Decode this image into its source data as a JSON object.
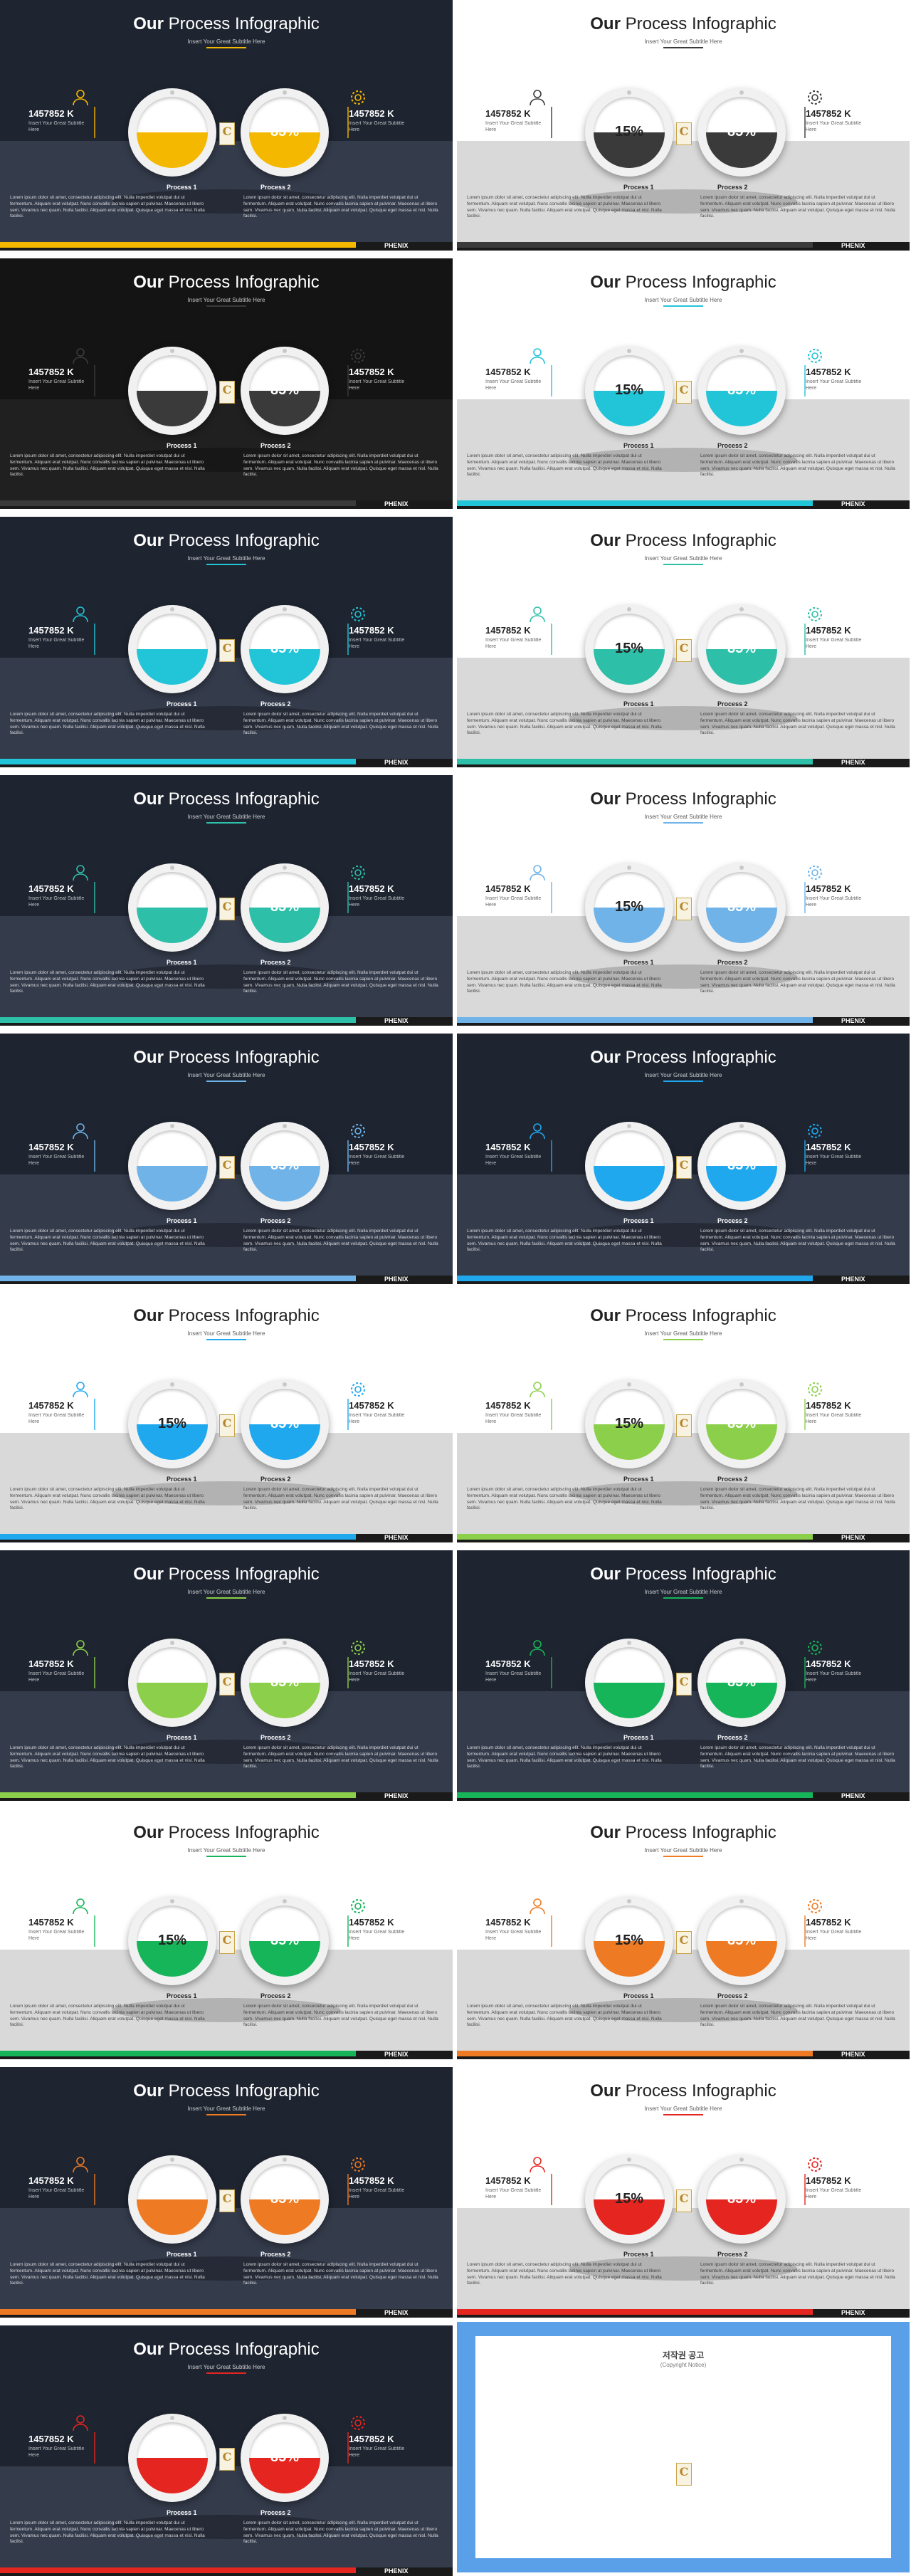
{
  "common": {
    "title_bold": "Our",
    "title_rest": " Process Infographic",
    "subtitle": "Insert Your Great Subtitle Here",
    "stat_value": "1457852 K",
    "stat_sub": "Insert Your Great Subtitle Here",
    "process1": "Process 1",
    "process2": "Process 2",
    "paragraph": "Lorem ipsum dolor sit amet, consectetur adipiscing elit. Nulla imperdiet volutpat dui ut fermentum. Aliquam erat volutpat. Nunc convallis lacinia sapien at pulvinar. Maecenas ut libero sem. Vivamus nec quam. Nulla facilisi. Aliquam erat volutpat. Quisque eget massa et nisl. Nulla facilisi.",
    "pct_left": "15%",
    "pct_right": "85%",
    "page_num": "",
    "brand": "PHENIX",
    "logo_letter": "C"
  },
  "colors": {
    "yellow": "#f5b800",
    "gray": "#3a3a3a",
    "darkgray": "#3a3a3a",
    "cyan": "#22c4d8",
    "teal": "#2dbfa8",
    "lightblue": "#6fb3e8",
    "blue": "#1fa8ee",
    "green": "#8ccf4a",
    "emerald": "#17b55a",
    "orange": "#ee7b23",
    "red": "#e5251f"
  },
  "slides": [
    {
      "theme": "dark",
      "accent": "yellow"
    },
    {
      "theme": "light",
      "accent": "gray"
    },
    {
      "theme": "black",
      "accent": "darkgray"
    },
    {
      "theme": "light",
      "accent": "cyan"
    },
    {
      "theme": "dark",
      "accent": "cyan"
    },
    {
      "theme": "light",
      "accent": "teal"
    },
    {
      "theme": "dark",
      "accent": "teal"
    },
    {
      "theme": "light",
      "accent": "lightblue"
    },
    {
      "theme": "dark",
      "accent": "lightblue"
    },
    {
      "theme": "dark",
      "accent": "blue"
    },
    {
      "theme": "light",
      "accent": "blue"
    },
    {
      "theme": "light",
      "accent": "green"
    },
    {
      "theme": "dark",
      "accent": "green"
    },
    {
      "theme": "dark",
      "accent": "emerald"
    },
    {
      "theme": "light",
      "accent": "emerald"
    },
    {
      "theme": "light",
      "accent": "orange"
    },
    {
      "theme": "dark",
      "accent": "orange"
    },
    {
      "theme": "light",
      "accent": "red"
    },
    {
      "theme": "dark",
      "accent": "red"
    }
  ],
  "notice": {
    "title": "저작권 공고",
    "subtitle": "(Copyright Notice)",
    "text": "",
    "logo_letter": "C"
  }
}
